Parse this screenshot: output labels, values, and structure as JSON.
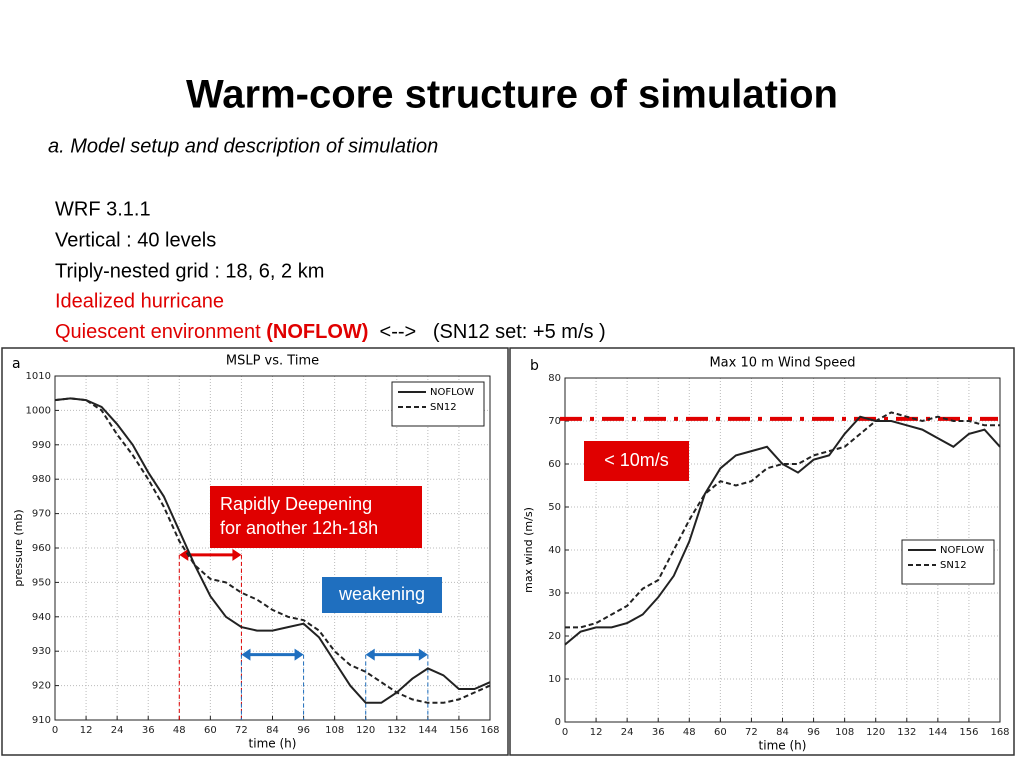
{
  "title": "Warm-core structure of simulation",
  "subtitle": "a. Model setup and description of simulation",
  "lines": [
    "WRF 3.1.1",
    "Vertical : 40 levels",
    "Triply-nested grid : 18, 6, 2 km",
    "Idealized hurricane"
  ],
  "last_line": [
    "Quiescent environment ",
    "(NOFLOW)",
    "  <-->   (SN12 set: +5 m/s )"
  ],
  "chart_data": [
    {
      "type": "line",
      "panel": "a",
      "title": "MSLP vs. Time",
      "x_label": "time (h)",
      "y_label": "pressure (mb)",
      "xlim": [
        0,
        168
      ],
      "xticks": [
        0,
        12,
        24,
        36,
        48,
        60,
        72,
        84,
        96,
        108,
        120,
        132,
        144,
        156,
        168
      ],
      "ylim": [
        910,
        1010
      ],
      "yticks": [
        910,
        920,
        930,
        940,
        950,
        960,
        970,
        980,
        990,
        1000,
        1010
      ],
      "grid": true,
      "legend": "upper right",
      "x": [
        0,
        6,
        12,
        18,
        24,
        30,
        36,
        42,
        48,
        54,
        60,
        66,
        72,
        78,
        84,
        90,
        96,
        102,
        108,
        114,
        120,
        126,
        132,
        138,
        144,
        150,
        156,
        162,
        168
      ],
      "series": [
        {
          "name": "NOFLOW",
          "color": "#222222",
          "dash": "solid",
          "values": [
            1003,
            1003.5,
            1003,
            1001,
            996,
            990,
            982,
            975,
            965,
            955,
            946,
            940,
            937,
            936,
            936,
            937,
            938,
            934,
            927,
            920,
            915,
            915,
            918,
            922,
            925,
            923,
            919,
            919,
            921
          ]
        },
        {
          "name": "SN12",
          "color": "#222222",
          "dash": "dashed",
          "values": [
            1003,
            1003.5,
            1003,
            1000,
            993,
            987,
            980,
            972,
            962,
            955,
            951,
            950,
            947,
            945,
            942,
            940,
            939,
            936,
            930,
            926,
            924,
            921,
            918,
            916,
            915,
            915,
            916,
            918,
            920
          ]
        }
      ],
      "intervals": [
        {
          "x": [
            48,
            72
          ],
          "y": 958,
          "color": "#e00000"
        },
        {
          "x": [
            72,
            96
          ],
          "y": 929,
          "color": "#1f6fbf"
        },
        {
          "x": [
            120,
            144
          ],
          "y": 929,
          "color": "#1f6fbf"
        }
      ],
      "annotations": [
        {
          "text": [
            "Rapidly Deepening",
            "for another 12h-18h"
          ],
          "color": "#e00000"
        },
        {
          "text": [
            "weakening"
          ],
          "color": "#1f6fbf"
        }
      ]
    },
    {
      "type": "line",
      "panel": "b",
      "title": "Max 10 m Wind Speed",
      "x_label": "time (h)",
      "y_label": "max wind (m/s)",
      "xlim": [
        0,
        168
      ],
      "xticks": [
        0,
        12,
        24,
        36,
        48,
        60,
        72,
        84,
        96,
        108,
        120,
        132,
        144,
        156,
        168
      ],
      "ylim": [
        0,
        80
      ],
      "yticks": [
        0,
        10,
        20,
        30,
        40,
        50,
        60,
        70,
        80
      ],
      "grid": true,
      "legend": "center right",
      "x": [
        0,
        6,
        12,
        18,
        24,
        30,
        36,
        42,
        48,
        54,
        60,
        66,
        72,
        78,
        84,
        90,
        96,
        102,
        108,
        114,
        120,
        126,
        132,
        138,
        144,
        150,
        156,
        162,
        168
      ],
      "series": [
        {
          "name": "NOFLOW",
          "color": "#222222",
          "dash": "solid",
          "values": [
            18,
            21,
            22,
            22,
            23,
            25,
            29,
            34,
            42,
            53,
            59,
            62,
            63,
            64,
            60,
            58,
            61,
            62,
            67,
            71,
            70,
            70,
            69,
            68,
            66,
            64,
            67,
            68,
            64
          ]
        },
        {
          "name": "SN12",
          "color": "#222222",
          "dash": "dashed",
          "values": [
            22,
            22,
            23,
            25,
            27,
            31,
            33,
            40,
            47,
            53,
            56,
            55,
            56,
            59,
            60,
            60,
            62,
            63,
            64,
            67,
            70,
            72,
            71,
            70,
            71,
            70,
            70,
            69,
            69
          ]
        }
      ],
      "reference_line": {
        "y": 70.5,
        "color": "#e00000"
      },
      "annotations": [
        {
          "text": [
            "< 10m/s"
          ],
          "color": "#e00000"
        }
      ]
    }
  ]
}
